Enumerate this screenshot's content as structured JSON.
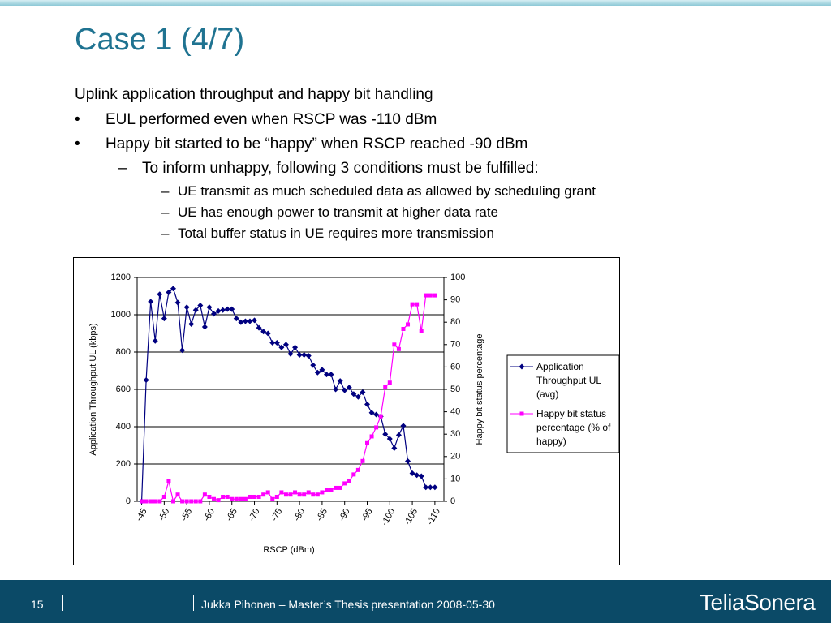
{
  "slide": {
    "title": "Case 1 (4/7)",
    "heading": "Uplink application throughput and happy bit handling",
    "bullets": [
      "EUL performed even when RSCP was -110 dBm",
      "Happy bit started to be “happy” when RSCP reached -90 dBm"
    ],
    "sub_bullet": "To inform unhappy, following 3 conditions must be fulfilled:",
    "sub_sub_bullets": [
      "UE transmit as much scheduled data as allowed by scheduling grant",
      "UE has enough power to transmit at higher data rate",
      "Total buffer status in UE requires more transmission"
    ]
  },
  "footer": {
    "page_number": "15",
    "text": "Jukka Pihonen – Master’s Thesis presentation 2008-05-30",
    "logo": "TeliaSonera"
  },
  "chart_data": {
    "type": "line",
    "xlabel": "RSCP (dBm)",
    "ylabel": "Application Throughput UL (kbps)",
    "y2label": "Happy bit status percentage",
    "x": [
      -45,
      -46,
      -47,
      -48,
      -49,
      -50,
      -51,
      -52,
      -53,
      -54,
      -55,
      -56,
      -57,
      -58,
      -59,
      -60,
      -61,
      -62,
      -63,
      -64,
      -65,
      -66,
      -67,
      -68,
      -69,
      -70,
      -71,
      -72,
      -73,
      -74,
      -75,
      -76,
      -77,
      -78,
      -79,
      -80,
      -81,
      -82,
      -83,
      -84,
      -85,
      -86,
      -87,
      -88,
      -89,
      -90,
      -91,
      -92,
      -93,
      -94,
      -95,
      -96,
      -97,
      -98,
      -99,
      -100,
      -101,
      -102,
      -103,
      -104,
      -105,
      -106,
      -107,
      -108,
      -109,
      -110
    ],
    "xlim": [
      -44,
      -112
    ],
    "xticks": [
      -45,
      -50,
      -55,
      -60,
      -65,
      -70,
      -75,
      -80,
      -85,
      -90,
      -95,
      -100,
      -105,
      -110
    ],
    "ylim": [
      0,
      1200
    ],
    "yticks": [
      0,
      200,
      400,
      600,
      800,
      1000,
      1200
    ],
    "y2lim": [
      0,
      100
    ],
    "y2ticks": [
      0,
      10,
      20,
      30,
      40,
      50,
      60,
      70,
      80,
      90,
      100
    ],
    "grid": true,
    "legend": "right",
    "series": [
      {
        "name": "Application Throughput UL (avg)",
        "color": "#000080",
        "marker": "diamond",
        "values": [
          0,
          650,
          1070,
          860,
          1110,
          980,
          1120,
          1140,
          1065,
          810,
          1040,
          950,
          1025,
          1050,
          935,
          1040,
          1005,
          1020,
          1025,
          1030,
          1030,
          980,
          960,
          965,
          965,
          970,
          930,
          910,
          900,
          850,
          850,
          825,
          840,
          790,
          825,
          785,
          785,
          780,
          730,
          690,
          705,
          680,
          680,
          600,
          645,
          595,
          610,
          575,
          560,
          585,
          520,
          475,
          465,
          455,
          360,
          335,
          285,
          355,
          405,
          215,
          150,
          140,
          135,
          75,
          75,
          75
        ]
      },
      {
        "name": "Happy bit status percentage (% of happy)",
        "color": "#ff00ff",
        "marker": "square",
        "axis": "y2",
        "values": [
          0,
          0,
          0,
          0,
          0,
          2,
          9,
          0,
          3,
          0,
          0,
          0,
          0,
          0,
          3,
          2,
          1,
          0.5,
          2,
          2,
          1,
          1,
          1,
          1,
          2,
          2,
          2,
          3,
          4,
          1,
          2,
          4,
          3,
          3,
          4,
          3,
          3,
          4,
          3,
          3,
          4,
          5,
          5,
          6,
          6,
          8,
          9,
          12,
          14,
          18,
          26,
          29,
          33,
          38,
          51,
          53,
          70,
          68,
          77,
          79,
          88,
          88,
          76,
          92,
          92,
          92
        ]
      }
    ]
  }
}
